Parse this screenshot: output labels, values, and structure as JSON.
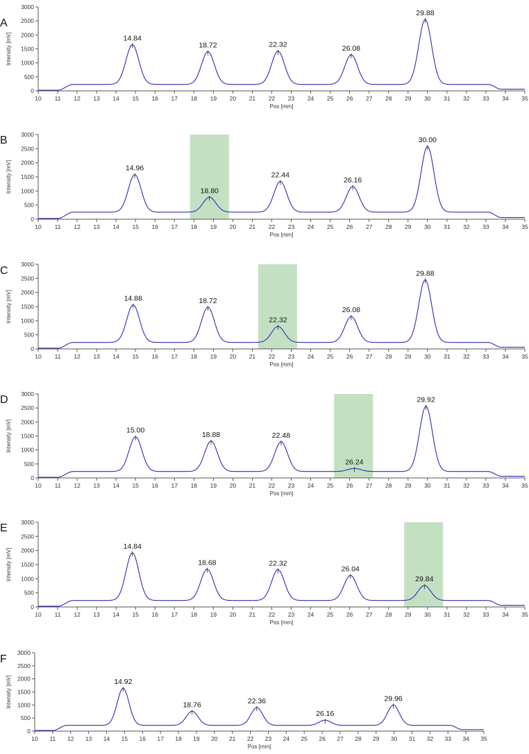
{
  "chart_data": [
    {
      "panel": "A",
      "type": "line",
      "xlabel": "Pos [mm]",
      "ylabel": "Intensity [mV]",
      "xlim": [
        10,
        35
      ],
      "ylim": [
        0,
        3000
      ],
      "xticks": [
        10,
        11,
        12,
        13,
        14,
        15,
        16,
        17,
        18,
        19,
        20,
        21,
        22,
        23,
        24,
        25,
        26,
        27,
        28,
        29,
        30,
        31,
        32,
        33,
        34,
        35
      ],
      "yticks": [
        0,
        500,
        1000,
        1500,
        2000,
        2500,
        3000
      ],
      "line_color": "#2b2bb8",
      "baseline": 230,
      "peaks": [
        {
          "x": 14.84,
          "y": 1650,
          "label": "14.84"
        },
        {
          "x": 18.72,
          "y": 1400,
          "label": "18.72"
        },
        {
          "x": 22.32,
          "y": 1420,
          "label": "22.32"
        },
        {
          "x": 26.08,
          "y": 1290,
          "label": "26.08"
        },
        {
          "x": 29.88,
          "y": 2550,
          "label": "29.88"
        }
      ],
      "highlight": null
    },
    {
      "panel": "B",
      "type": "line",
      "xlabel": "Pos [mm]",
      "ylabel": "Intensity [mV]",
      "xlim": [
        10,
        35
      ],
      "ylim": [
        0,
        3000
      ],
      "xticks": [
        10,
        11,
        12,
        13,
        14,
        15,
        16,
        17,
        18,
        19,
        20,
        21,
        22,
        23,
        24,
        25,
        26,
        27,
        28,
        29,
        30,
        31,
        32,
        33,
        34,
        35
      ],
      "yticks": [
        0,
        500,
        1000,
        1500,
        2000,
        2500,
        3000
      ],
      "line_color": "#2b2bb8",
      "baseline": 250,
      "peaks": [
        {
          "x": 14.96,
          "y": 1580,
          "label": "14.96"
        },
        {
          "x": 18.8,
          "y": 780,
          "label": "18.80"
        },
        {
          "x": 22.44,
          "y": 1340,
          "label": "22.44"
        },
        {
          "x": 26.16,
          "y": 1160,
          "label": "26.16"
        },
        {
          "x": 30.0,
          "y": 2580,
          "label": "30.00"
        }
      ],
      "highlight": [
        17.8,
        19.8
      ]
    },
    {
      "panel": "C",
      "type": "line",
      "xlabel": "Pos [mm]",
      "ylabel": "Intensity [mV]",
      "xlim": [
        10,
        35
      ],
      "ylim": [
        0,
        3000
      ],
      "xticks": [
        10,
        11,
        12,
        13,
        14,
        15,
        16,
        17,
        18,
        19,
        20,
        21,
        22,
        23,
        24,
        25,
        26,
        27,
        28,
        29,
        30,
        31,
        32,
        33,
        34,
        35
      ],
      "yticks": [
        0,
        500,
        1000,
        1500,
        2000,
        2500,
        3000
      ],
      "line_color": "#2b2bb8",
      "baseline": 230,
      "peaks": [
        {
          "x": 14.88,
          "y": 1560,
          "label": "14.88"
        },
        {
          "x": 18.72,
          "y": 1480,
          "label": "18.72"
        },
        {
          "x": 22.32,
          "y": 800,
          "label": "22.32"
        },
        {
          "x": 26.08,
          "y": 1150,
          "label": "26.08"
        },
        {
          "x": 29.88,
          "y": 2450,
          "label": "29.88"
        }
      ],
      "highlight": [
        21.3,
        23.3
      ]
    },
    {
      "panel": "D",
      "type": "line",
      "xlabel": "Pos [mm]",
      "ylabel": "Intensity [mV]",
      "xlim": [
        10,
        35
      ],
      "ylim": [
        0,
        3000
      ],
      "xticks": [
        10,
        11,
        12,
        13,
        14,
        15,
        16,
        17,
        18,
        19,
        20,
        21,
        22,
        23,
        24,
        25,
        26,
        27,
        28,
        29,
        30,
        31,
        32,
        33,
        34,
        35
      ],
      "yticks": [
        0,
        500,
        1000,
        1500,
        2000,
        2500,
        3000
      ],
      "line_color": "#2b2bb8",
      "baseline": 230,
      "peaks": [
        {
          "x": 15.0,
          "y": 1470,
          "label": "15.00"
        },
        {
          "x": 18.88,
          "y": 1320,
          "label": "18.88"
        },
        {
          "x": 22.48,
          "y": 1290,
          "label": "22.48"
        },
        {
          "x": 26.24,
          "y": 340,
          "label": "26.24"
        },
        {
          "x": 29.92,
          "y": 2560,
          "label": "29.92"
        }
      ],
      "highlight": [
        25.2,
        27.2
      ]
    },
    {
      "panel": "E",
      "type": "line",
      "xlabel": "Pos [mm]",
      "ylabel": "Intensity [mV]",
      "xlim": [
        10,
        35
      ],
      "ylim": [
        0,
        3000
      ],
      "xticks": [
        10,
        11,
        12,
        13,
        14,
        15,
        16,
        17,
        18,
        19,
        20,
        21,
        22,
        23,
        24,
        25,
        26,
        27,
        28,
        29,
        30,
        31,
        32,
        33,
        34,
        35
      ],
      "yticks": [
        0,
        500,
        1000,
        1500,
        2000,
        2500,
        3000
      ],
      "line_color": "#2b2bb8",
      "baseline": 230,
      "peaks": [
        {
          "x": 14.84,
          "y": 1920,
          "label": "14.84"
        },
        {
          "x": 18.68,
          "y": 1340,
          "label": "18.68"
        },
        {
          "x": 22.32,
          "y": 1320,
          "label": "22.32"
        },
        {
          "x": 26.04,
          "y": 1120,
          "label": "26.04"
        },
        {
          "x": 29.84,
          "y": 760,
          "label": "29.84"
        }
      ],
      "highlight": [
        28.8,
        30.8
      ]
    },
    {
      "panel": "F",
      "type": "line",
      "xlabel": "Pos [mm]",
      "ylabel": "Intensity [mV]",
      "xlim": [
        10,
        35
      ],
      "ylim": [
        0,
        3000
      ],
      "xticks": [
        10,
        11,
        12,
        13,
        14,
        15,
        16,
        17,
        18,
        19,
        20,
        21,
        22,
        23,
        24,
        25,
        26,
        27,
        28,
        29,
        30,
        31,
        32,
        33,
        34,
        35
      ],
      "yticks": [
        0,
        500,
        1000,
        1500,
        2000,
        2500,
        3000
      ],
      "line_color": "#2b2bb8",
      "baseline": 220,
      "peaks": [
        {
          "x": 14.92,
          "y": 1640,
          "label": "14.92"
        },
        {
          "x": 18.76,
          "y": 760,
          "label": "18.76"
        },
        {
          "x": 22.36,
          "y": 900,
          "label": "22.36"
        },
        {
          "x": 26.16,
          "y": 420,
          "label": "26.16"
        },
        {
          "x": 29.96,
          "y": 1000,
          "label": "29.96"
        }
      ],
      "highlight": null
    }
  ],
  "colors": {
    "line": "#2b2bb8",
    "highlight": "#a9d4a8",
    "axis": "#555555"
  }
}
